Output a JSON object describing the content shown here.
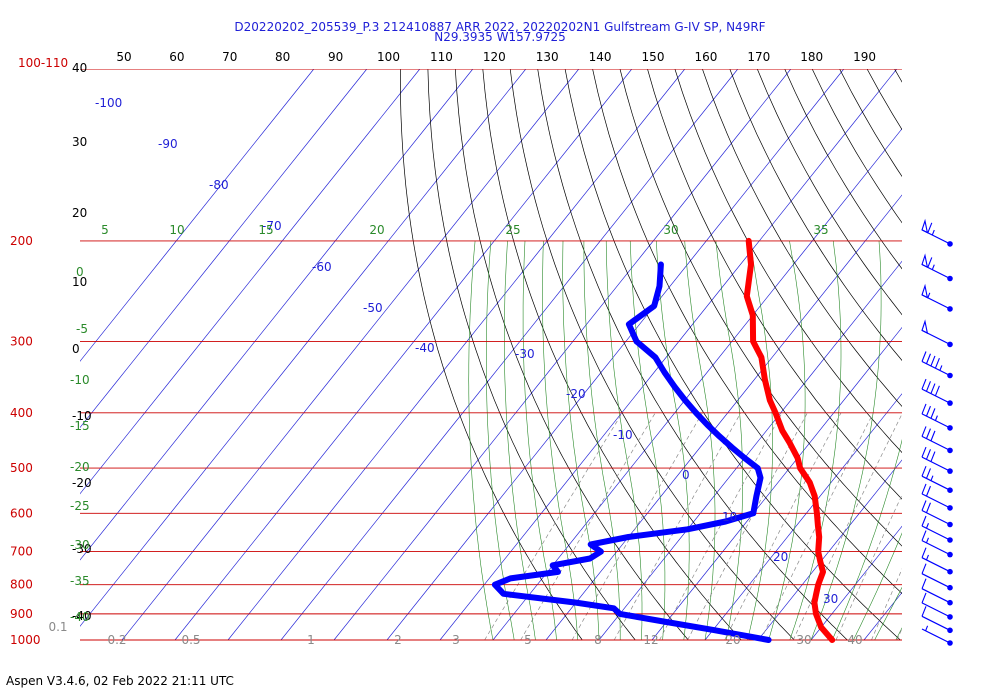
{
  "header": {
    "title_line1": "D20220202_205539_P.3 212410887 ARR 2022, 20220202N1 Gulfstream G-IV SP, N49RF",
    "title_line2": "N29.3935 W157.9725"
  },
  "footer": {
    "text": "Aspen V3.4.6, 02 Feb 2022  21:11 UTC"
  },
  "chart_data": {
    "type": "skew-t",
    "pressure_levels": [
      100,
      200,
      300,
      400,
      500,
      600,
      700,
      800,
      900,
      1000
    ],
    "pressure_top_label": "100-110",
    "top_axis_ticks": [
      "50",
      "60",
      "70",
      "80",
      "90",
      "100",
      "110",
      "120",
      "130",
      "140",
      "150",
      "160",
      "170",
      "180",
      "190"
    ],
    "left_temp_labels": [
      "40",
      "30",
      "20",
      "10",
      "0",
      "-10",
      "-20",
      "-30",
      "-40"
    ],
    "isotherm_labels": [
      "-100",
      "-90",
      "-80",
      "-70",
      "-60",
      "-50",
      "-40",
      "-30",
      "-20",
      "-10",
      "0",
      "10",
      "20",
      "30"
    ],
    "theta_e_labels_left": [
      "0",
      "-5",
      "-10",
      "-15",
      "-20",
      "-25",
      "-30",
      "-35",
      "-40"
    ],
    "theta_e_labels_top": [
      "5",
      "10",
      "15",
      "20",
      "25",
      "30",
      "35"
    ],
    "mixing_ratio_labels": [
      "0.2",
      "0.5",
      "1",
      "2",
      "3",
      "5",
      "8",
      "12",
      "20",
      "30",
      "40"
    ],
    "mixing_ratio_small_label": "0.1",
    "temperature_profile": [
      [
        200,
        -52
      ],
      [
        220,
        -48
      ],
      [
        250,
        -44
      ],
      [
        270,
        -40
      ],
      [
        300,
        -36
      ],
      [
        320,
        -32
      ],
      [
        350,
        -28
      ],
      [
        380,
        -24
      ],
      [
        400,
        -21
      ],
      [
        430,
        -17
      ],
      [
        450,
        -14
      ],
      [
        480,
        -10
      ],
      [
        500,
        -8
      ],
      [
        530,
        -4
      ],
      [
        560,
        -1
      ],
      [
        600,
        2
      ],
      [
        630,
        4
      ],
      [
        660,
        6
      ],
      [
        700,
        8
      ],
      [
        730,
        10
      ],
      [
        760,
        12
      ],
      [
        800,
        13
      ],
      [
        830,
        14
      ],
      [
        860,
        15
      ],
      [
        900,
        17
      ],
      [
        950,
        20
      ],
      [
        1000,
        24
      ]
    ],
    "dewpoint_profile": [
      [
        220,
        -65
      ],
      [
        240,
        -62
      ],
      [
        260,
        -60
      ],
      [
        280,
        -62
      ],
      [
        300,
        -58
      ],
      [
        320,
        -52
      ],
      [
        340,
        -48
      ],
      [
        360,
        -44
      ],
      [
        380,
        -40
      ],
      [
        400,
        -36
      ],
      [
        420,
        -32
      ],
      [
        440,
        -28
      ],
      [
        460,
        -24
      ],
      [
        480,
        -20
      ],
      [
        500,
        -16
      ],
      [
        520,
        -14
      ],
      [
        560,
        -12
      ],
      [
        600,
        -10
      ],
      [
        620,
        -14
      ],
      [
        640,
        -20
      ],
      [
        660,
        -30
      ],
      [
        680,
        -36
      ],
      [
        700,
        -33
      ],
      [
        720,
        -34
      ],
      [
        740,
        -40
      ],
      [
        760,
        -38
      ],
      [
        780,
        -46
      ],
      [
        800,
        -48
      ],
      [
        830,
        -45
      ],
      [
        860,
        -30
      ],
      [
        880,
        -22
      ],
      [
        900,
        -20
      ],
      [
        930,
        -10
      ],
      [
        960,
        0
      ],
      [
        1000,
        12
      ]
    ],
    "wind_barbs": [
      {
        "pressure": 200,
        "speed": 65
      },
      {
        "pressure": 230,
        "speed": 65
      },
      {
        "pressure": 260,
        "speed": 55
      },
      {
        "pressure": 300,
        "speed": 50
      },
      {
        "pressure": 340,
        "speed": 45
      },
      {
        "pressure": 380,
        "speed": 40
      },
      {
        "pressure": 420,
        "speed": 35
      },
      {
        "pressure": 460,
        "speed": 30
      },
      {
        "pressure": 500,
        "speed": 30
      },
      {
        "pressure": 540,
        "speed": 25
      },
      {
        "pressure": 580,
        "speed": 20
      },
      {
        "pressure": 620,
        "speed": 20
      },
      {
        "pressure": 660,
        "speed": 15
      },
      {
        "pressure": 700,
        "speed": 15
      },
      {
        "pressure": 750,
        "speed": 15
      },
      {
        "pressure": 800,
        "speed": 10
      },
      {
        "pressure": 850,
        "speed": 10
      },
      {
        "pressure": 900,
        "speed": 10
      },
      {
        "pressure": 950,
        "speed": 10
      },
      {
        "pressure": 1000,
        "speed": 5
      }
    ],
    "colors": {
      "temperature": "#ff0000",
      "dewpoint": "#0000ff",
      "isobar": "#cc0000",
      "isotherm": "#1f1fd6",
      "dry_adiabat": "#000000",
      "moist_adiabat": "#2a8a2a",
      "mixing_ratio": "#8a8a8a"
    }
  }
}
